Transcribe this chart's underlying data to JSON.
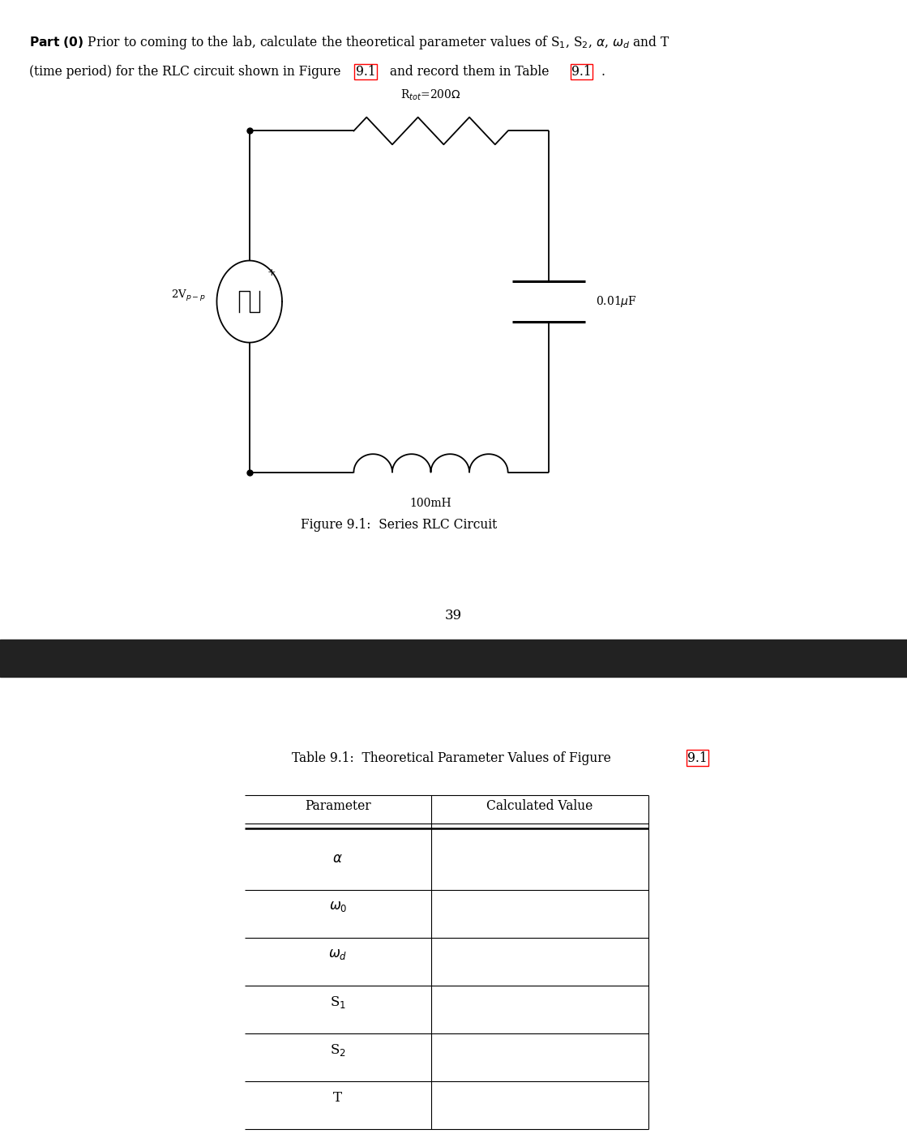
{
  "bg_color": "#ffffff",
  "dark_bar_color": "#222222",
  "figure_caption": "Figure 9.1:  Series RLC Circuit",
  "page_number": "39",
  "table_params": [
    "$\\alpha$",
    "$\\omega_0$",
    "$\\omega_d$",
    "S$_1$",
    "S$_2$",
    "T"
  ],
  "table_header_param": "Parameter",
  "table_header_val": "Calculated Value",
  "resistor_label": "R$_{tot}$=200$\\Omega$",
  "inductor_label": "100mH",
  "capacitor_label": "0.01$\\mu$F",
  "source_label": "2V$_{p-p}$",
  "header_part1": "$\\mathbf{Part\\ (0)}$ Prior to coming to the lab, calculate the theoretical parameter values of S$_1$, S$_2$, $\\alpha$, $\\omega_d$ and T",
  "header_line2_pre": "(time period) for the RLC circuit shown in Figure ",
  "header_line2_fig": "9.1",
  "header_line2_mid": " and record them in Table ",
  "header_line2_tbl": "9.1",
  "header_line2_end": ".",
  "table_caption_pre": "Table 9.1:  Theoretical Parameter Values of Figure ",
  "table_caption_ref": "9.1"
}
